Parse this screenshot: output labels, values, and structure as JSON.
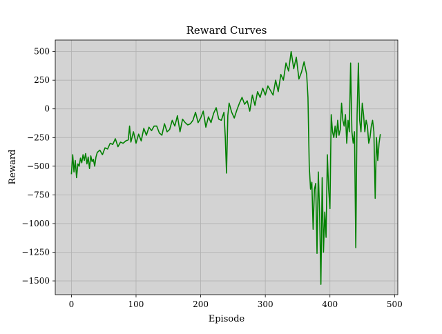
{
  "chart_data": {
    "type": "line",
    "title": "Reward Curves",
    "xlabel": "Episode",
    "ylabel": "Reward",
    "xlim": [
      -25,
      505
    ],
    "ylim": [
      -1620,
      600
    ],
    "xticks": [
      0,
      100,
      200,
      300,
      400,
      500
    ],
    "yticks": [
      -1500,
      -1250,
      -1000,
      -750,
      -500,
      -250,
      0,
      250,
      500
    ],
    "xtick_labels": [
      "0",
      "100",
      "200",
      "300",
      "400",
      "500"
    ],
    "ytick_labels": [
      "−1500",
      "−1250",
      "−1000",
      "−750",
      "−500",
      "−250",
      "0",
      "250",
      "500"
    ],
    "grid": true,
    "colors": {
      "line": "#008000",
      "plot_background": "#d3d3d3",
      "grid": "#b0b0b0"
    },
    "series": [
      {
        "x": [
          0,
          2,
          4,
          6,
          8,
          10,
          12,
          14,
          16,
          18,
          20,
          22,
          24,
          26,
          28,
          30,
          32,
          34,
          36,
          38,
          40,
          44,
          48,
          52,
          56,
          60,
          64,
          68,
          72,
          76,
          80,
          84,
          88,
          90,
          92,
          96,
          100,
          104,
          108,
          112,
          116,
          120,
          124,
          128,
          132,
          136,
          140,
          144,
          148,
          152,
          156,
          160,
          164,
          168,
          172,
          176,
          180,
          184,
          188,
          192,
          196,
          200,
          204,
          208,
          212,
          216,
          220,
          224,
          228,
          232,
          236,
          238,
          240,
          242,
          244,
          248,
          252,
          256,
          260,
          264,
          268,
          272,
          276,
          280,
          284,
          288,
          292,
          296,
          300,
          304,
          308,
          312,
          316,
          320,
          324,
          328,
          332,
          336,
          340,
          344,
          348,
          352,
          356,
          360,
          364,
          366,
          368,
          370,
          372,
          374,
          376,
          378,
          380,
          382,
          384,
          386,
          388,
          390,
          392,
          394,
          396,
          398,
          400,
          402,
          404,
          406,
          408,
          410,
          412,
          414,
          416,
          418,
          420,
          422,
          424,
          426,
          428,
          430,
          432,
          434,
          436,
          438,
          440,
          442,
          444,
          446,
          448,
          450,
          452,
          454,
          456,
          458,
          460,
          462,
          464,
          466,
          468,
          470,
          472,
          474,
          476,
          478
        ],
        "y": [
          -570,
          -400,
          -550,
          -450,
          -600,
          -480,
          -500,
          -430,
          -470,
          -400,
          -450,
          -390,
          -480,
          -420,
          -520,
          -410,
          -460,
          -440,
          -500,
          -420,
          -380,
          -360,
          -400,
          -340,
          -350,
          -300,
          -310,
          -260,
          -330,
          -290,
          -300,
          -280,
          -270,
          -150,
          -290,
          -200,
          -300,
          -220,
          -280,
          -170,
          -230,
          -160,
          -190,
          -150,
          -150,
          -210,
          -230,
          -130,
          -200,
          -180,
          -100,
          -150,
          -60,
          -200,
          -90,
          -120,
          -140,
          -130,
          -100,
          -30,
          -120,
          -80,
          -20,
          -160,
          -70,
          -120,
          -40,
          10,
          -90,
          -100,
          -30,
          -240,
          -560,
          -60,
          50,
          -30,
          -80,
          -10,
          50,
          100,
          40,
          70,
          -20,
          120,
          30,
          150,
          100,
          180,
          120,
          200,
          160,
          120,
          250,
          150,
          300,
          250,
          400,
          330,
          500,
          350,
          450,
          260,
          320,
          410,
          300,
          100,
          -500,
          -700,
          -640,
          -1050,
          -700,
          -650,
          -1260,
          -550,
          -900,
          -1530,
          -600,
          -1250,
          -900,
          -1120,
          -400,
          -700,
          -870,
          -50,
          -200,
          -250,
          -150,
          -250,
          -100,
          -230,
          -180,
          50,
          -100,
          -150,
          -50,
          -300,
          -100,
          -200,
          400,
          -200,
          -300,
          -200,
          -1210,
          -50,
          400,
          -100,
          -200,
          50,
          -50,
          -200,
          -100,
          -150,
          -300,
          -250,
          -150,
          -100,
          -200,
          -780,
          -250,
          -450,
          -300,
          -220
        ]
      }
    ]
  }
}
